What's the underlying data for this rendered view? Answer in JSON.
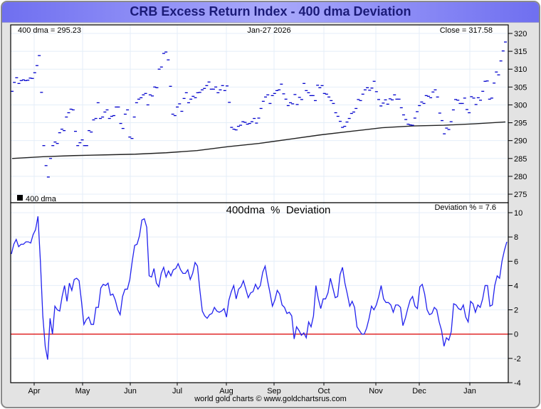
{
  "title": "CRB Excess Return Index - 400 dma Deviation",
  "credit": "world gold charts © www.goldchartsrus.com",
  "colors": {
    "title_text": "#1b1b78",
    "price_marks": "#0000cc",
    "dma_line": "#222222",
    "deviation_line": "#2222ee",
    "zero_line": "#dd0000",
    "grid": "#e4eef8"
  },
  "chart_data": [
    {
      "type": "scatter",
      "panel": "price",
      "header": {
        "left": "400 dma = 295.23",
        "center": "Jan-27  2026",
        "right": "Close = 317.58"
      },
      "legend": {
        "label": "400 dma",
        "placement": "bottom-left"
      },
      "ylim": [
        273,
        322
      ],
      "yticks": [
        275,
        280,
        285,
        290,
        295,
        300,
        305,
        310,
        315,
        320
      ],
      "months": [
        "Apr",
        "May",
        "Jun",
        "Jul",
        "Aug",
        "Sep",
        "Oct",
        "Nov",
        "Dec",
        "Jan"
      ],
      "dma": [
        285.0,
        285.5,
        285.8,
        286.0,
        286.2,
        286.6,
        287.2,
        288.3,
        289.2,
        290.4,
        291.6,
        292.6,
        293.6,
        294.1,
        294.3,
        294.7,
        295.23
      ],
      "close": [
        303.8,
        306.3,
        307.6,
        306.0,
        306.8,
        307.0,
        306.8,
        306.9,
        307.5,
        307.4,
        309.0,
        311.0,
        313.8,
        303.5,
        288.6,
        283.0,
        279.8,
        285.0,
        288.6,
        289.6,
        289.2,
        292.2,
        293.2,
        292.8,
        296.6,
        297.8,
        298.8,
        298.6,
        292.6,
        288.6,
        289.4,
        290.2,
        288.6,
        288.6,
        292.8,
        292.4,
        295.8,
        296.2,
        300.6,
        296.2,
        296.6,
        298.0,
        298.6,
        296.2,
        296.8,
        297.0,
        299.4,
        299.4,
        294.8,
        293.4,
        297.4,
        298.6,
        291.0,
        290.6,
        296.6,
        300.6,
        301.6,
        302.0,
        302.8,
        303.2,
        300.0,
        302.8,
        302.5,
        305.0,
        304.8,
        310.0,
        310.6,
        314.4,
        314.8,
        312.6,
        305.2,
        297.4,
        297.0,
        299.4,
        300.3,
        298.2,
        301.8,
        303.4,
        300.6,
        301.6,
        302.4,
        302.0,
        303.4,
        303.5,
        304.2,
        304.6,
        305.4,
        306.4,
        304.4,
        304.4,
        305.0,
        303.4,
        304.2,
        305.4,
        304.0,
        305.3,
        300.7,
        293.7,
        293.2,
        293.0,
        294.0,
        294.3,
        295.3,
        295.1,
        294.6,
        294.8,
        295.3,
        296.2,
        294.9,
        296.3,
        299.0,
        301.0,
        302.2,
        302.8,
        300.4,
        302.6,
        303.2,
        304.0,
        304.2,
        305.8,
        303.1,
        301.6,
        299.8,
        300.6,
        300.3,
        302.9,
        300.1,
        302.1,
        301.5,
        306.0,
        304.0,
        303.4,
        302.6,
        302.6,
        301.2,
        305.5,
        304.8,
        305.4,
        303.2,
        303.0,
        302.2,
        301.2,
        300.4,
        297.8,
        296.8,
        295.4,
        293.7,
        294.0,
        295.2,
        296.2,
        297.6,
        298.0,
        299.0,
        301.5,
        301.2,
        303.0,
        304.2,
        304.8,
        304.1,
        304.7,
        306.6,
        303.7,
        301.5,
        299.7,
        300.5,
        301.4,
        300.2,
        301.7,
        301.4,
        302.8,
        301.6,
        301.6,
        299.2,
        297.2,
        295.9,
        294.6,
        294.4,
        294.3,
        296.3,
        298.1,
        299.8,
        300.8,
        300.4,
        302.6,
        302.4,
        302.0,
        303.6,
        304.2,
        302.2,
        297.7,
        295.6,
        291.9,
        293.5,
        293.1,
        295.3,
        298.6,
        301.5,
        301.3,
        300.4,
        300.4,
        301.9,
        298.7,
        297.8,
        302.3,
        301.9,
        300.1,
        302.0,
        301.3,
        303.8,
        306.6,
        306.7,
        301.6,
        301.9,
        306.1,
        309.2,
        308.4,
        312.3,
        315.1,
        317.6
      ]
    },
    {
      "type": "line",
      "panel": "deviation",
      "title": "400dma  %  Deviation",
      "header_right": "Deviation % = 7.6",
      "ylim": [
        -4,
        10
      ],
      "yticks": [
        -4,
        -2,
        0,
        2,
        4,
        6,
        8,
        10
      ],
      "reference_line": 0,
      "months": [
        "Apr",
        "May",
        "Jun",
        "Jul",
        "Aug",
        "Sep",
        "Oct",
        "Nov",
        "Dec",
        "Jan"
      ],
      "values": [
        6.6,
        7.4,
        7.8,
        7.2,
        7.4,
        7.4,
        7.6,
        7.6,
        7.5,
        8.2,
        8.6,
        9.7,
        6.0,
        1.5,
        -1.0,
        -2.1,
        1.3,
        0.0,
        2.3,
        2.0,
        1.9,
        3.1,
        4.0,
        2.7,
        4.2,
        3.6,
        4.5,
        4.6,
        4.4,
        2.7,
        0.8,
        1.2,
        1.4,
        0.8,
        0.8,
        2.2,
        2.2,
        3.8,
        4.1,
        4.0,
        4.2,
        3.2,
        3.3,
        2.8,
        2.0,
        1.6,
        3.1,
        3.7,
        3.7,
        4.5,
        6.0,
        7.3,
        7.4,
        8.1,
        9.4,
        9.5,
        8.8,
        4.8,
        4.7,
        5.4,
        4.2,
        3.9,
        5.0,
        5.5,
        4.7,
        5.2,
        4.8,
        5.3,
        5.4,
        5.8,
        5.3,
        5.0,
        5.0,
        5.3,
        4.5,
        5.0,
        5.9,
        5.6,
        3.6,
        1.9,
        1.5,
        1.3,
        1.6,
        1.7,
        2.2,
        1.9,
        1.8,
        1.9,
        2.1,
        1.4,
        2.8,
        3.5,
        4.0,
        2.9,
        3.7,
        3.9,
        4.4,
        3.7,
        3.0,
        3.4,
        3.5,
        4.1,
        3.7,
        4.0,
        5.1,
        5.6,
        4.4,
        3.4,
        2.3,
        2.8,
        3.6,
        3.3,
        2.4,
        2.2,
        1.7,
        1.8,
        1.5,
        -0.4,
        0.6,
        0.3,
        -0.1,
        0.1,
        -0.3,
        1.0,
        0.6,
        1.5,
        4.0,
        2.9,
        2.1,
        2.9,
        2.9,
        3.4,
        4.6,
        3.8,
        3.0,
        3.1,
        4.9,
        5.5,
        4.2,
        3.3,
        2.3,
        2.7,
        2.2,
        0.6,
        0.3,
        0.0,
        0.0,
        0.5,
        1.3,
        2.3,
        2.0,
        2.4,
        3.1,
        4.0,
        2.9,
        2.6,
        2.6,
        2.4,
        1.8,
        2.4,
        2.4,
        2.2,
        0.7,
        1.3,
        2.1,
        2.8,
        3.1,
        2.3,
        2.1,
        3.9,
        4.1,
        3.3,
        2.0,
        1.6,
        1.7,
        2.2,
        2.0,
        1.0,
        0.3,
        -1.0,
        -0.3,
        -0.5,
        0.2,
        2.5,
        2.4,
        2.1,
        2.0,
        2.4,
        1.4,
        1.0,
        2.7,
        2.5,
        1.8,
        2.4,
        2.2,
        2.9,
        4.0,
        4.0,
        2.3,
        2.4,
        4.0,
        4.8,
        4.6,
        6.0,
        6.9,
        7.6
      ]
    }
  ]
}
